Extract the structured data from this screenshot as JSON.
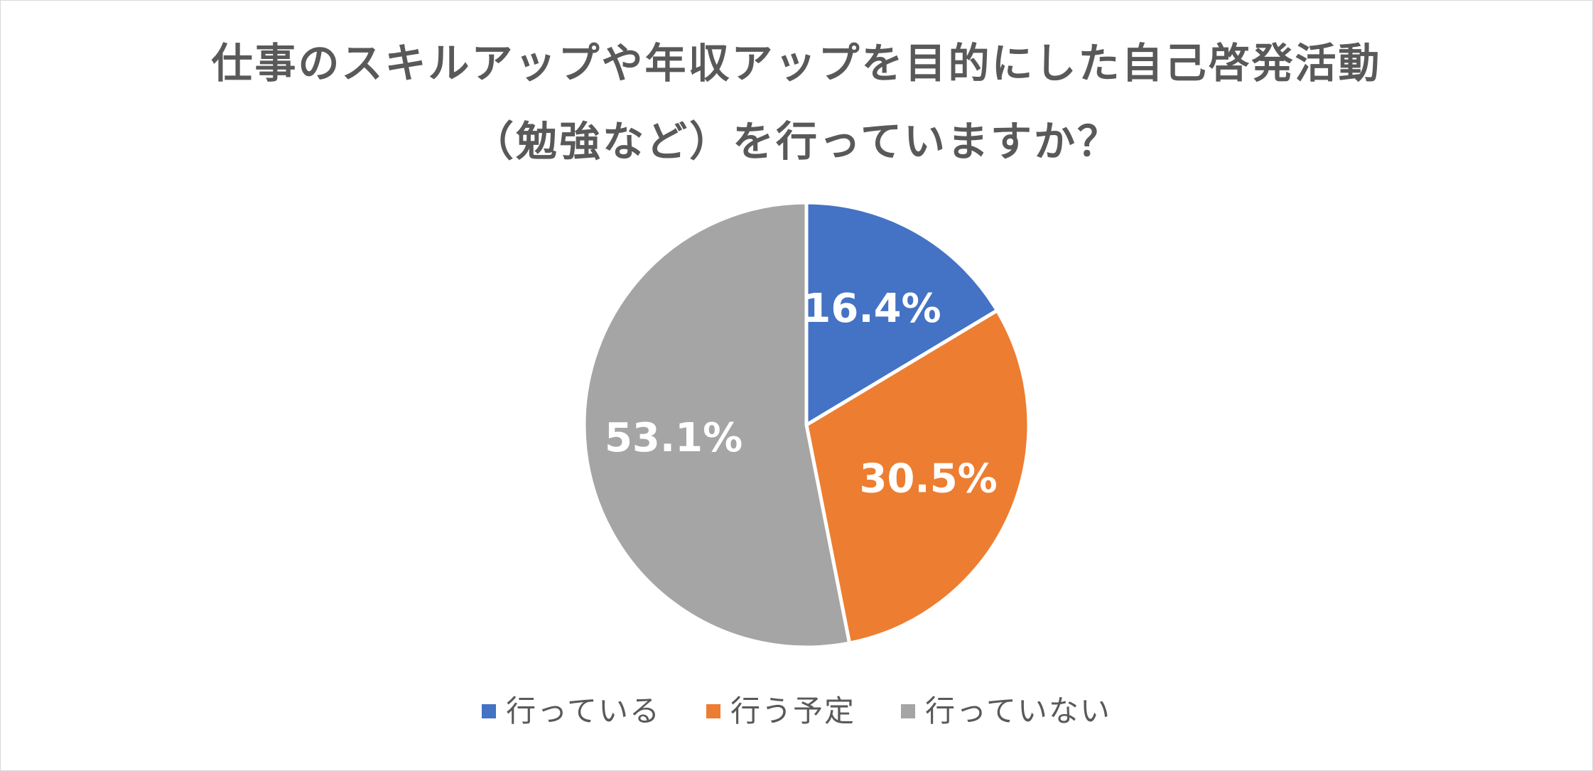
{
  "chart_data": {
    "type": "pie",
    "title_line1": "仕事のスキルアップや年収アップを目的にした自己啓発活動",
    "title_line2": "（勉強など）を行っていますか？",
    "categories": [
      "行っている",
      "行う予定",
      "行っていない"
    ],
    "values": [
      16.4,
      30.5,
      53.1
    ],
    "value_labels": [
      "16.4%",
      "30.5%",
      "53.1%"
    ],
    "colors": [
      "#4472C4",
      "#ED7D31",
      "#A5A5A5"
    ],
    "legend_position": "bottom",
    "start_angle": "12 o'clock",
    "direction": "clockwise"
  }
}
